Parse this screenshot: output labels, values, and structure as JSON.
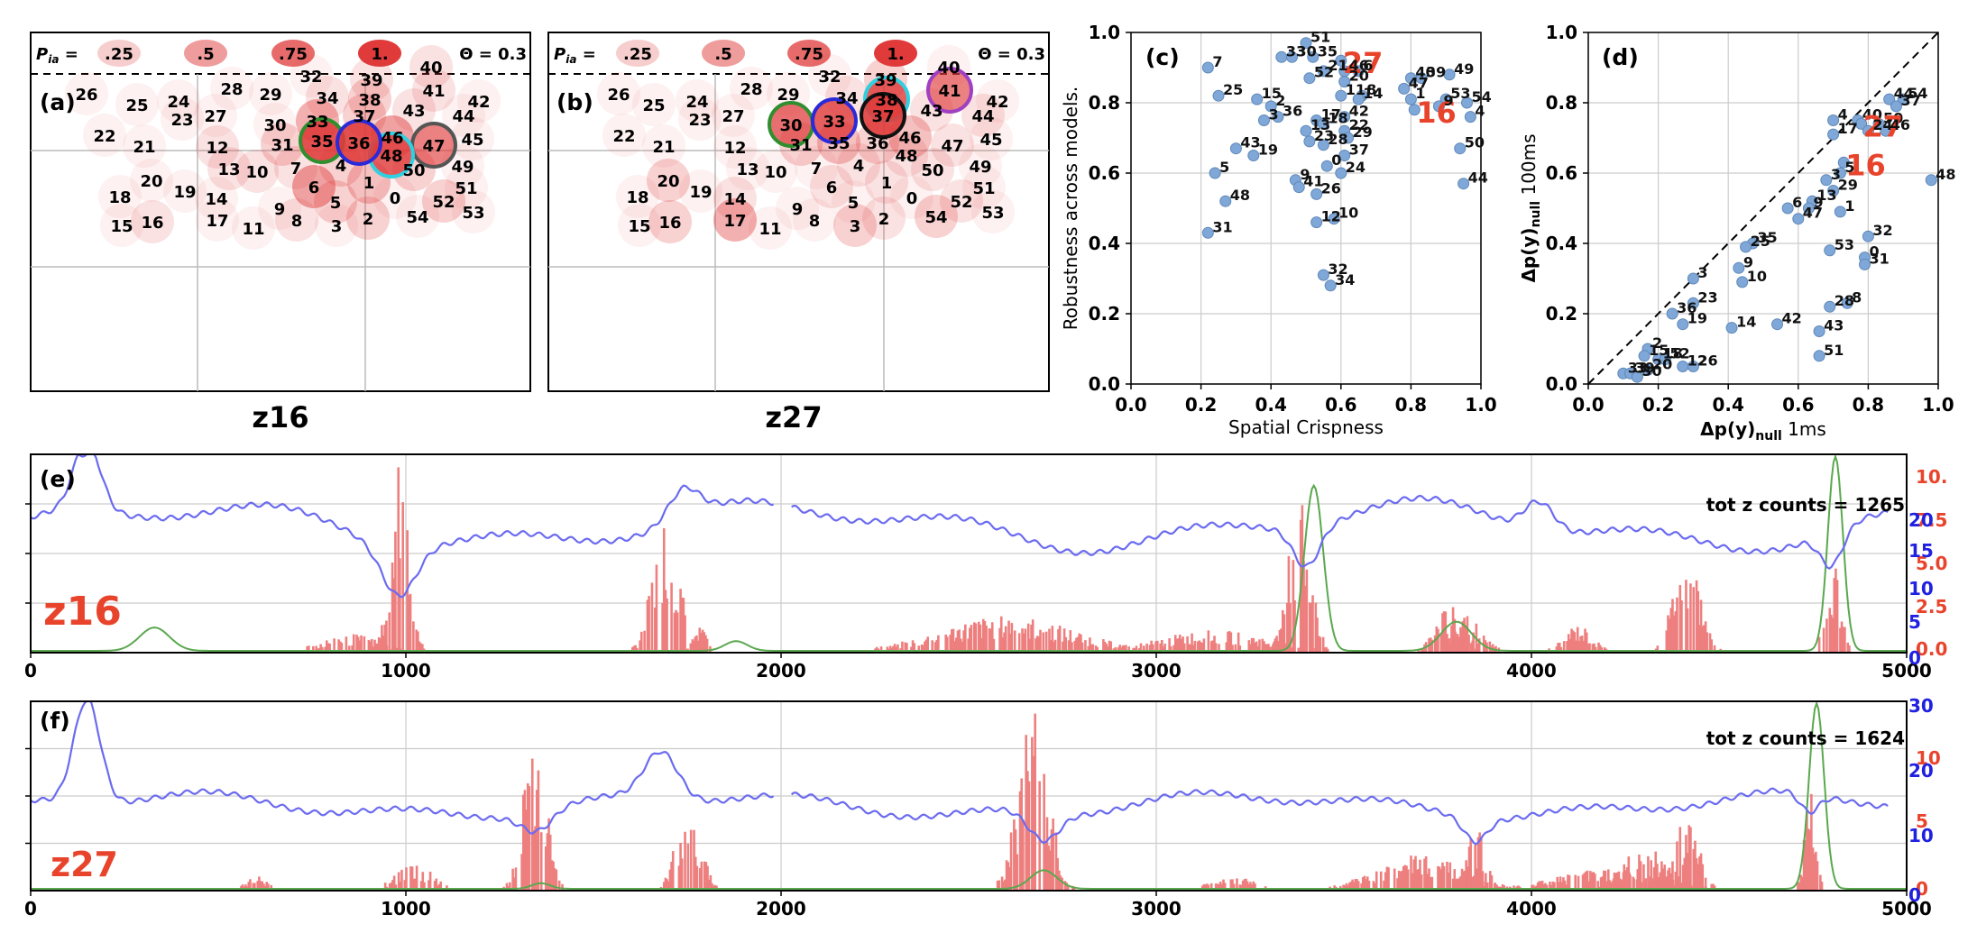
{
  "pia_legend": {
    "label": "P",
    "label_sub": "ia",
    "label_eq": "=",
    "levels": [
      ".25",
      ".5",
      ".75",
      "1."
    ],
    "theta": "Θ = 0.3"
  },
  "panel_a": {
    "letter": "(a)",
    "title": "z16",
    "points": [
      [
        "26",
        96,
        104,
        0
      ],
      [
        "25",
        152,
        116,
        0
      ],
      [
        "24",
        198,
        112,
        0
      ],
      [
        "23",
        202,
        132,
        0
      ],
      [
        "28",
        257,
        98,
        0
      ],
      [
        "27",
        239,
        128,
        0
      ],
      [
        "29",
        300,
        104,
        0
      ],
      [
        "32",
        345,
        84,
        0
      ],
      [
        "39",
        412,
        88,
        0.1
      ],
      [
        "40",
        478,
        74,
        0.1
      ],
      [
        "41",
        481,
        100,
        0.1
      ],
      [
        "42",
        531,
        112,
        0
      ],
      [
        "34",
        363,
        108,
        0.1
      ],
      [
        "38",
        410,
        110,
        0.2
      ],
      [
        "44",
        514,
        128,
        0
      ],
      [
        "43",
        459,
        122,
        0.1
      ],
      [
        "37",
        404,
        128,
        0.2
      ],
      [
        "33",
        352,
        134,
        0.4
      ],
      [
        "30",
        305,
        138,
        0
      ],
      [
        "22",
        116,
        150,
        0
      ],
      [
        "21",
        160,
        162,
        0
      ],
      [
        "12",
        241,
        163,
        0.1
      ],
      [
        "31",
        313,
        160,
        0.2
      ],
      [
        "35",
        357,
        156,
        1
      ],
      [
        "36",
        398,
        158,
        1
      ],
      [
        "46",
        435,
        152,
        0.5
      ],
      [
        "47",
        481,
        161,
        0.7
      ],
      [
        "45",
        524,
        154,
        0
      ],
      [
        "48",
        434,
        172,
        0.9
      ],
      [
        "13",
        254,
        187,
        0.1
      ],
      [
        "10",
        285,
        190,
        0.1
      ],
      [
        "7",
        328,
        186,
        0.1
      ],
      [
        "4",
        378,
        183,
        0.2
      ],
      [
        "50",
        459,
        188,
        0.2
      ],
      [
        "49",
        513,
        184,
        0
      ],
      [
        "20",
        168,
        200,
        0
      ],
      [
        "19",
        205,
        212,
        0
      ],
      [
        "6",
        348,
        207,
        0.5
      ],
      [
        "1",
        409,
        202,
        0.3
      ],
      [
        "51",
        517,
        208,
        0
      ],
      [
        "18",
        133,
        218,
        0
      ],
      [
        "14",
        240,
        220,
        0
      ],
      [
        "5",
        372,
        224,
        0.2
      ],
      [
        "0",
        438,
        219,
        0
      ],
      [
        "52",
        492,
        223,
        0.2
      ],
      [
        "9",
        310,
        231,
        0
      ],
      [
        "53",
        525,
        235,
        0
      ],
      [
        "8",
        329,
        244,
        0.1
      ],
      [
        "2",
        408,
        242,
        0.2
      ],
      [
        "54",
        463,
        240,
        0
      ],
      [
        "17",
        241,
        244,
        0
      ],
      [
        "3",
        373,
        250,
        0
      ],
      [
        "11",
        281,
        253,
        0
      ],
      [
        "15",
        135,
        250,
        0
      ],
      [
        "16",
        169,
        246,
        0.1
      ]
    ]
  },
  "panel_b": {
    "letter": "(b)",
    "title": "z27",
    "points": [
      [
        "26",
        686,
        104,
        0
      ],
      [
        "25",
        725,
        116,
        0
      ],
      [
        "24",
        773,
        112,
        0
      ],
      [
        "23",
        776,
        132,
        0
      ],
      [
        "28",
        833,
        98,
        0
      ],
      [
        "27",
        813,
        128,
        0
      ],
      [
        "29",
        874,
        104,
        0
      ],
      [
        "32",
        920,
        84,
        0
      ],
      [
        "39",
        982,
        88,
        0.2
      ],
      [
        "40",
        1052,
        74,
        0
      ],
      [
        "41",
        1053,
        100,
        0.7
      ],
      [
        "42",
        1106,
        112,
        0
      ],
      [
        "34",
        939,
        108,
        0.1
      ],
      [
        "38",
        983,
        110,
        0.9
      ],
      [
        "44",
        1090,
        128,
        0.1
      ],
      [
        "43",
        1033,
        122,
        0.1
      ],
      [
        "37",
        979,
        128,
        1
      ],
      [
        "33",
        925,
        134,
        0.9
      ],
      [
        "30",
        877,
        138,
        0.8
      ],
      [
        "35",
        930,
        158,
        0.3
      ],
      [
        "22",
        692,
        150,
        0
      ],
      [
        "21",
        736,
        162,
        0
      ],
      [
        "12",
        815,
        163,
        0
      ],
      [
        "31",
        888,
        160,
        0.2
      ],
      [
        "36",
        973,
        158,
        0.2
      ],
      [
        "46",
        1009,
        152,
        0.3
      ],
      [
        "47",
        1056,
        161,
        0.1
      ],
      [
        "45",
        1099,
        154,
        0
      ],
      [
        "48",
        1005,
        172,
        0.1
      ],
      [
        "13",
        829,
        187,
        0
      ],
      [
        "10",
        860,
        190,
        0
      ],
      [
        "7",
        905,
        186,
        0
      ],
      [
        "4",
        952,
        183,
        0.1
      ],
      [
        "50",
        1034,
        188,
        0.1
      ],
      [
        "49",
        1087,
        184,
        0
      ],
      [
        "20",
        741,
        200,
        0.2
      ],
      [
        "19",
        777,
        212,
        0
      ],
      [
        "6",
        922,
        207,
        0.1
      ],
      [
        "1",
        983,
        202,
        0.1
      ],
      [
        "51",
        1091,
        208,
        0
      ],
      [
        "18",
        707,
        218,
        0
      ],
      [
        "14",
        815,
        220,
        0.1
      ],
      [
        "5",
        946,
        224,
        0
      ],
      [
        "0",
        1011,
        219,
        0
      ],
      [
        "52",
        1066,
        223,
        0.1
      ],
      [
        "9",
        884,
        231,
        0
      ],
      [
        "53",
        1101,
        235,
        0
      ],
      [
        "8",
        903,
        244,
        0
      ],
      [
        "2",
        980,
        242,
        0.1
      ],
      [
        "54",
        1038,
        240,
        0.2
      ],
      [
        "17",
        815,
        244,
        0.4
      ],
      [
        "3",
        948,
        250,
        0.2
      ],
      [
        "11",
        854,
        253,
        0
      ],
      [
        "15",
        709,
        250,
        0
      ],
      [
        "16",
        743,
        246,
        0.2
      ]
    ]
  },
  "panel_c": {
    "letter": "(c)",
    "xlabel": "Spatial Crispness",
    "ylabel": "Robustness across models.",
    "xticks": [
      "0.0",
      "0.2",
      "0.4",
      "0.6",
      "0.8",
      "1.0"
    ],
    "yticks": [
      "0.0",
      "0.2",
      "0.4",
      "0.6",
      "0.8",
      "1.0"
    ],
    "highlight": [
      "27",
      "16"
    ],
    "points": [
      [
        "51",
        0.5,
        0.97
      ],
      [
        "33",
        0.43,
        0.93
      ],
      [
        "30",
        0.46,
        0.93
      ],
      [
        "35",
        0.52,
        0.93
      ],
      [
        "27",
        0.6,
        0.92
      ],
      [
        "7",
        0.22,
        0.9
      ],
      [
        "21",
        0.55,
        0.89
      ],
      [
        "46",
        0.61,
        0.89
      ],
      [
        "6",
        0.65,
        0.89
      ],
      [
        "52",
        0.51,
        0.87
      ],
      [
        "39",
        0.83,
        0.87
      ],
      [
        "49",
        0.91,
        0.88
      ],
      [
        "40",
        0.8,
        0.87
      ],
      [
        "20",
        0.61,
        0.86
      ],
      [
        "47",
        0.78,
        0.84
      ],
      [
        "25",
        0.25,
        0.82
      ],
      [
        "11",
        0.6,
        0.82
      ],
      [
        "8",
        0.66,
        0.82
      ],
      [
        "14",
        0.65,
        0.81
      ],
      [
        "1",
        0.8,
        0.81
      ],
      [
        "53",
        0.9,
        0.81
      ],
      [
        "54",
        0.96,
        0.8
      ],
      [
        "15",
        0.36,
        0.81
      ],
      [
        "2",
        0.4,
        0.79
      ],
      [
        "16",
        0.81,
        0.78
      ],
      [
        "9",
        0.88,
        0.79
      ],
      [
        "4",
        0.97,
        0.76
      ],
      [
        "36",
        0.42,
        0.76
      ],
      [
        "3",
        0.38,
        0.75
      ],
      [
        "42",
        0.61,
        0.76
      ],
      [
        "17",
        0.53,
        0.75
      ],
      [
        "18",
        0.55,
        0.74
      ],
      [
        "13",
        0.5,
        0.72
      ],
      [
        "22",
        0.61,
        0.72
      ],
      [
        "29",
        0.62,
        0.7
      ],
      [
        "23",
        0.51,
        0.69
      ],
      [
        "28",
        0.55,
        0.68
      ],
      [
        "43",
        0.3,
        0.67
      ],
      [
        "19",
        0.35,
        0.65
      ],
      [
        "37",
        0.61,
        0.65
      ],
      [
        "50",
        0.94,
        0.67
      ],
      [
        "0",
        0.56,
        0.62
      ],
      [
        "24",
        0.6,
        0.6
      ],
      [
        "5",
        0.24,
        0.6
      ],
      [
        "9b",
        0.47,
        0.58
      ],
      [
        "41",
        0.48,
        0.56
      ],
      [
        "26",
        0.53,
        0.54
      ],
      [
        "44",
        0.95,
        0.57
      ],
      [
        "48",
        0.27,
        0.52
      ],
      [
        "10",
        0.58,
        0.47
      ],
      [
        "12",
        0.53,
        0.46
      ],
      [
        "31",
        0.22,
        0.43
      ],
      [
        "32",
        0.55,
        0.31
      ],
      [
        "34",
        0.57,
        0.28
      ]
    ]
  },
  "panel_d": {
    "letter": "(d)",
    "xlabel": "Δp(y)null 1ms",
    "ylabel": "Δp(y)null 100ms",
    "xticks": [
      "0.0",
      "0.2",
      "0.4",
      "0.6",
      "0.8",
      "1.0"
    ],
    "yticks": [
      "0.0",
      "0.2",
      "0.4",
      "0.6",
      "0.8",
      "1.0"
    ],
    "highlight": [
      "27",
      "16"
    ],
    "points": [
      [
        "44",
        0.86,
        0.81
      ],
      [
        "54",
        0.9,
        0.81
      ],
      [
        "37",
        0.88,
        0.79
      ],
      [
        "40",
        0.77,
        0.75
      ],
      [
        "50",
        0.83,
        0.74
      ],
      [
        "4",
        0.7,
        0.75
      ],
      [
        "27",
        0.78,
        0.74
      ],
      [
        "24",
        0.8,
        0.72
      ],
      [
        "46",
        0.85,
        0.72
      ],
      [
        "17",
        0.7,
        0.71
      ],
      [
        "16",
        0.73,
        0.63
      ],
      [
        "5",
        0.72,
        0.6
      ],
      [
        "3x",
        0.68,
        0.58
      ],
      [
        "29",
        0.7,
        0.55
      ],
      [
        "6",
        0.57,
        0.5
      ],
      [
        "13",
        0.64,
        0.52
      ],
      [
        "9",
        0.63,
        0.5
      ],
      [
        "1",
        0.72,
        0.49
      ],
      [
        "47",
        0.6,
        0.47
      ],
      [
        "35",
        0.47,
        0.4
      ],
      [
        "25",
        0.45,
        0.39
      ],
      [
        "53",
        0.69,
        0.38
      ],
      [
        "32",
        0.8,
        0.42
      ],
      [
        "0",
        0.79,
        0.36
      ],
      [
        "31",
        0.79,
        0.34
      ],
      [
        "48",
        0.98,
        0.58
      ],
      [
        "9d",
        0.43,
        0.33
      ],
      [
        "10",
        0.44,
        0.29
      ],
      [
        "3",
        0.3,
        0.3
      ],
      [
        "23",
        0.3,
        0.23
      ],
      [
        "36",
        0.24,
        0.2
      ],
      [
        "19",
        0.27,
        0.17
      ],
      [
        "14",
        0.41,
        0.16
      ],
      [
        "42",
        0.54,
        0.17
      ],
      [
        "28",
        0.69,
        0.22
      ],
      [
        "8",
        0.74,
        0.23
      ],
      [
        "43",
        0.66,
        0.15
      ],
      [
        "51",
        0.66,
        0.08
      ],
      [
        "2",
        0.17,
        0.1
      ],
      [
        "15",
        0.16,
        0.08
      ],
      [
        "18",
        0.2,
        0.07
      ],
      [
        "52",
        0.22,
        0.07
      ],
      [
        "12",
        0.27,
        0.05
      ],
      [
        "20",
        0.17,
        0.04
      ],
      [
        "33",
        0.1,
        0.03
      ],
      [
        "39",
        0.12,
        0.03
      ],
      [
        "26",
        0.3,
        0.05
      ],
      [
        "30",
        0.14,
        0.02
      ]
    ]
  },
  "panel_e": {
    "letter": "(e)",
    "label": "z16",
    "tot_text": "tot z counts = 1265",
    "xticks": [
      "0",
      "1000",
      "2000",
      "3000",
      "4000",
      "5000"
    ],
    "right_red": [
      "10.",
      "7.5",
      "5.0",
      "2.5",
      "0.0"
    ],
    "right_blue": [
      "20",
      "15",
      "10",
      "5",
      "0"
    ],
    "bursts": [
      [
        980,
        25,
        1.0
      ],
      [
        1690,
        35,
        0.75
      ],
      [
        3380,
        30,
        0.85
      ],
      [
        3780,
        40,
        0.25
      ],
      [
        4410,
        35,
        0.6
      ],
      [
        4800,
        20,
        0.5
      ],
      [
        2600,
        180,
        0.2
      ],
      [
        3150,
        150,
        0.12
      ],
      [
        850,
        80,
        0.1
      ],
      [
        4120,
        40,
        0.15
      ],
      [
        3830,
        40,
        0.2
      ],
      [
        1780,
        20,
        0.15
      ]
    ],
    "green_bumps": [
      [
        330,
        40,
        0.12
      ],
      [
        3420,
        25,
        0.85
      ],
      [
        3800,
        40,
        0.15
      ],
      [
        4810,
        20,
        1.0
      ],
      [
        1880,
        30,
        0.05
      ]
    ]
  },
  "panel_f": {
    "letter": "(f)",
    "label": "z27",
    "tot_text": "tot z counts = 1624",
    "xticks": [
      "0",
      "1000",
      "2000",
      "3000",
      "4000",
      "5000"
    ],
    "right_red": [
      "10",
      "5",
      "0"
    ],
    "right_blue": [
      "30",
      "20",
      "10",
      "0"
    ],
    "bursts": [
      [
        1340,
        30,
        0.95
      ],
      [
        1750,
        35,
        0.45
      ],
      [
        2670,
        40,
        1.0
      ],
      [
        3850,
        25,
        0.35
      ],
      [
        4410,
        35,
        0.4
      ],
      [
        4740,
        15,
        0.55
      ],
      [
        3700,
        120,
        0.2
      ],
      [
        4200,
        150,
        0.12
      ],
      [
        1020,
        50,
        0.15
      ],
      [
        3200,
        60,
        0.08
      ],
      [
        4300,
        60,
        0.25
      ],
      [
        600,
        30,
        0.08
      ]
    ],
    "green_bumps": [
      [
        2700,
        35,
        0.1
      ],
      [
        4760,
        20,
        1.0
      ],
      [
        1360,
        25,
        0.03
      ]
    ]
  }
}
